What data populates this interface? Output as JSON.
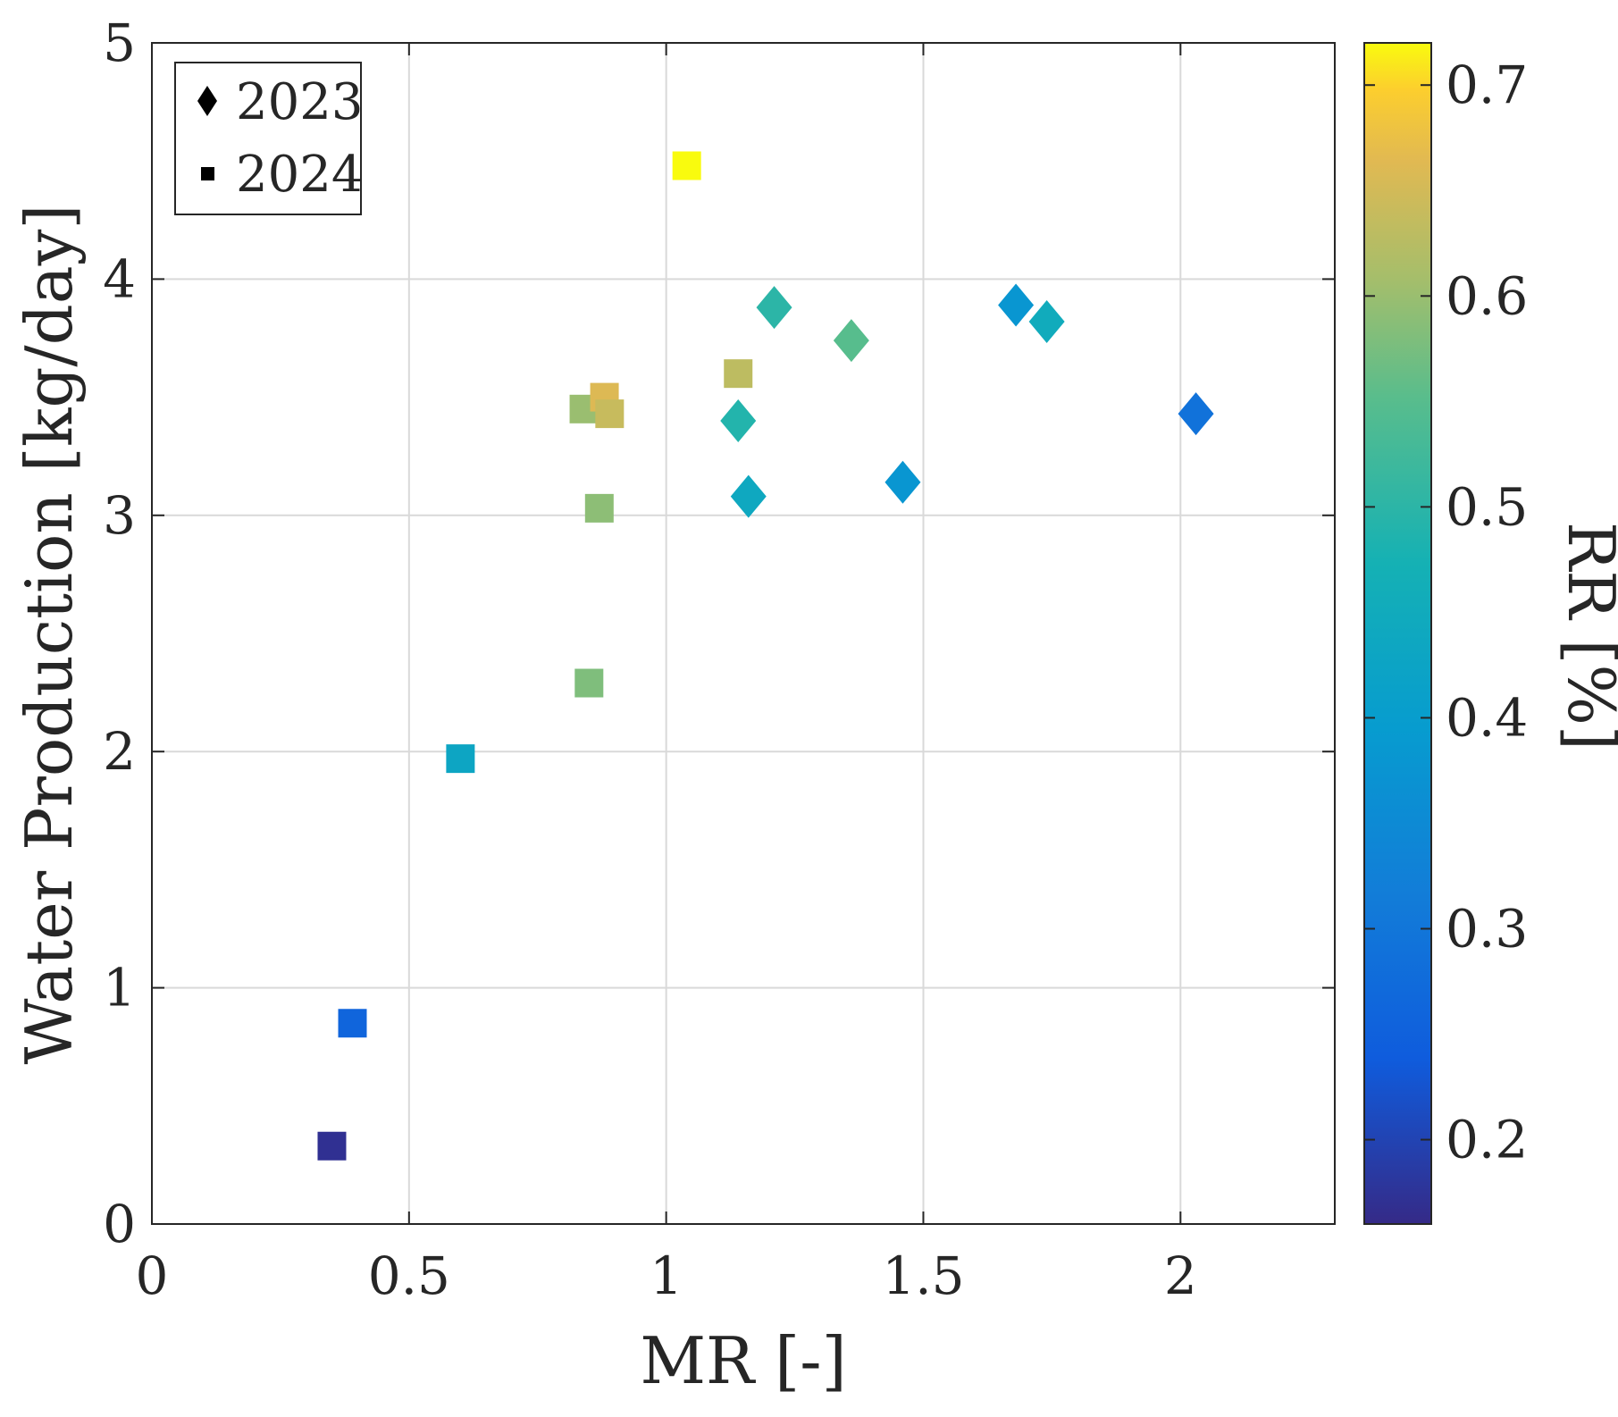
{
  "chart_data": {
    "type": "scatter",
    "title": "",
    "xlabel": "MR [-]",
    "ylabel": "Water Production [kg/day]",
    "colorbar_label": "RR [%]",
    "xlim": [
      0,
      2.3
    ],
    "ylim": [
      0,
      5
    ],
    "xticks": [
      0,
      0.5,
      1,
      1.5,
      2
    ],
    "xtick_labels": [
      "0",
      "0.5",
      "1",
      "1.5",
      "2"
    ],
    "yticks": [
      0,
      1,
      2,
      3,
      4,
      5
    ],
    "ytick_labels": [
      "0",
      "1",
      "2",
      "3",
      "4",
      "5"
    ],
    "colorbar_range": [
      0.16,
      0.72
    ],
    "colorbar_ticks": [
      0.2,
      0.3,
      0.4,
      0.5,
      0.6,
      0.7
    ],
    "colorbar_tick_labels": [
      "0.2",
      "0.3",
      "0.4",
      "0.5",
      "0.6",
      "0.7"
    ],
    "grid": true,
    "legend_position": "top-left",
    "series": [
      {
        "name": "2023",
        "marker": "diamond",
        "points": [
          {
            "x": 1.21,
            "y": 3.88,
            "rr": 0.5
          },
          {
            "x": 1.36,
            "y": 3.74,
            "rr": 0.55
          },
          {
            "x": 1.14,
            "y": 3.4,
            "rr": 0.49
          },
          {
            "x": 1.16,
            "y": 3.08,
            "rr": 0.44
          },
          {
            "x": 1.46,
            "y": 3.14,
            "rr": 0.38
          },
          {
            "x": 1.68,
            "y": 3.89,
            "rr": 0.38
          },
          {
            "x": 1.74,
            "y": 3.82,
            "rr": 0.45
          },
          {
            "x": 2.03,
            "y": 3.43,
            "rr": 0.29
          }
        ]
      },
      {
        "name": "2024",
        "marker": "square",
        "points": [
          {
            "x": 1.04,
            "y": 4.48,
            "rr": 0.72
          },
          {
            "x": 0.84,
            "y": 3.45,
            "rr": 0.6
          },
          {
            "x": 0.88,
            "y": 3.5,
            "rr": 0.66
          },
          {
            "x": 0.89,
            "y": 3.43,
            "rr": 0.64
          },
          {
            "x": 1.14,
            "y": 3.6,
            "rr": 0.63
          },
          {
            "x": 0.87,
            "y": 3.03,
            "rr": 0.59
          },
          {
            "x": 0.85,
            "y": 2.29,
            "rr": 0.58
          },
          {
            "x": 0.6,
            "y": 1.97,
            "rr": 0.43
          },
          {
            "x": 0.39,
            "y": 0.85,
            "rr": 0.26
          },
          {
            "x": 0.35,
            "y": 0.33,
            "rr": 0.17
          }
        ]
      }
    ]
  }
}
